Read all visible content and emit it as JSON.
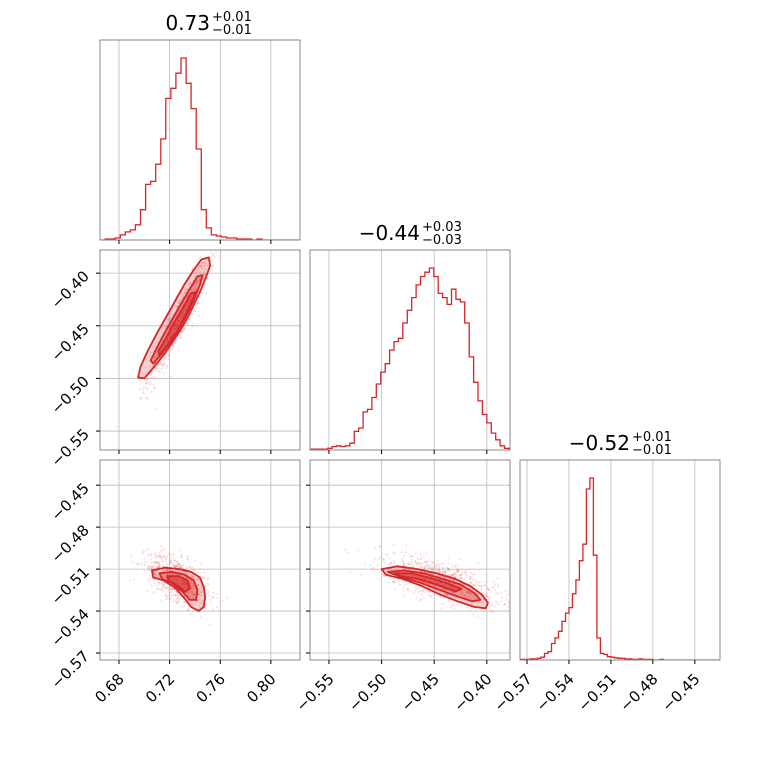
{
  "figure": {
    "type": "corner-plot",
    "color": "#d62728",
    "grid": true,
    "axis_color": "#888888",
    "grid_color": "#bbbbbb"
  },
  "params": [
    {
      "range": [
        0.665,
        0.823
      ],
      "ticks": [
        0.68,
        0.72,
        0.76,
        0.8
      ],
      "tick_labels": [
        "0.68",
        "0.72",
        "0.76",
        "0.80"
      ]
    },
    {
      "range": [
        -0.568,
        -0.378
      ],
      "ticks": [
        -0.55,
        -0.5,
        -0.45,
        -0.4
      ],
      "tick_labels": [
        "−0.55",
        "−0.50",
        "−0.45",
        "−0.40"
      ]
    },
    {
      "range": [
        -0.575,
        -0.432
      ],
      "ticks": [
        -0.57,
        -0.54,
        -0.51,
        -0.48,
        -0.45
      ],
      "tick_labels": [
        "−0.57",
        "−0.54",
        "−0.51",
        "−0.48",
        "−0.45"
      ]
    }
  ],
  "titles": [
    {
      "value": "0.73",
      "plus": "+0.01",
      "minus": "−0.01"
    },
    {
      "value": "−0.44",
      "plus": "+0.03",
      "minus": "−0.03"
    },
    {
      "value": "−0.52",
      "plus": "+0.01",
      "minus": "−0.01"
    }
  ],
  "chart_data": [
    {
      "type": "histogram",
      "param": 0,
      "bin_edges": [
        0.665,
        0.669,
        0.673,
        0.677,
        0.681,
        0.685,
        0.689,
        0.693,
        0.697,
        0.701,
        0.705,
        0.709,
        0.713,
        0.717,
        0.721,
        0.725,
        0.729,
        0.733,
        0.737,
        0.741,
        0.745,
        0.749,
        0.753,
        0.757,
        0.761,
        0.765,
        0.769,
        0.773,
        0.777,
        0.781,
        0.785,
        0.789,
        0.793,
        0.797,
        0.801,
        0.805,
        0.809,
        0.813,
        0.817,
        0.821,
        0.823
      ],
      "counts": [
        0,
        1,
        1,
        2,
        5,
        8,
        10,
        15,
        30,
        55,
        58,
        75,
        100,
        140,
        150,
        165,
        180,
        155,
        130,
        90,
        30,
        12,
        5,
        4,
        3,
        2,
        2,
        1,
        1,
        1,
        0,
        1,
        0,
        0,
        0,
        0,
        0,
        0,
        0,
        0
      ]
    },
    {
      "type": "histogram",
      "param": 1,
      "bin_edges": [
        -0.568,
        -0.5638,
        -0.5596,
        -0.5554,
        -0.5512,
        -0.547,
        -0.5428,
        -0.5386,
        -0.5344,
        -0.5302,
        -0.526,
        -0.5218,
        -0.5176,
        -0.5134,
        -0.5092,
        -0.505,
        -0.5008,
        -0.4966,
        -0.4924,
        -0.4882,
        -0.484,
        -0.4798,
        -0.4756,
        -0.4714,
        -0.4672,
        -0.463,
        -0.4588,
        -0.4546,
        -0.4504,
        -0.4462,
        -0.442,
        -0.4378,
        -0.4336,
        -0.4294,
        -0.4252,
        -0.421,
        -0.4168,
        -0.4126,
        -0.4084,
        -0.4042,
        -0.4,
        -0.3958,
        -0.3916,
        -0.3874,
        -0.3832,
        -0.379,
        -0.378
      ],
      "counts": [
        1,
        1,
        1,
        1,
        2,
        4,
        5,
        4,
        5,
        8,
        22,
        26,
        45,
        48,
        62,
        78,
        92,
        102,
        118,
        128,
        132,
        150,
        165,
        180,
        195,
        205,
        210,
        215,
        205,
        185,
        180,
        172,
        190,
        178,
        175,
        150,
        110,
        80,
        58,
        42,
        32,
        20,
        12,
        5,
        2,
        0
      ]
    },
    {
      "type": "histogram",
      "param": 2,
      "bin_edges": [
        -0.575,
        -0.5725,
        -0.57,
        -0.5675,
        -0.565,
        -0.5625,
        -0.56,
        -0.5575,
        -0.555,
        -0.5525,
        -0.55,
        -0.5475,
        -0.545,
        -0.5425,
        -0.54,
        -0.5375,
        -0.535,
        -0.5325,
        -0.53,
        -0.5275,
        -0.525,
        -0.5225,
        -0.52,
        -0.5175,
        -0.515,
        -0.5125,
        -0.51,
        -0.5075,
        -0.505,
        -0.5025,
        -0.5,
        -0.4975,
        -0.495,
        -0.4925,
        -0.49,
        -0.4875,
        -0.485,
        -0.4825,
        -0.48,
        -0.4775,
        -0.475,
        -0.4725,
        -0.47,
        -0.4675,
        -0.465,
        -0.4625,
        -0.46,
        -0.4575,
        -0.455,
        -0.4525,
        -0.45,
        -0.432
      ],
      "counts": [
        1,
        1,
        1,
        2,
        2,
        3,
        5,
        12,
        15,
        30,
        40,
        52,
        70,
        85,
        95,
        120,
        145,
        180,
        210,
        310,
        330,
        190,
        40,
        12,
        10,
        6,
        5,
        4,
        3,
        3,
        2,
        2,
        1,
        1,
        2,
        1,
        1,
        1,
        0,
        0,
        1,
        0,
        0,
        0,
        0,
        0,
        0,
        0,
        0,
        0,
        0
      ]
    },
    {
      "type": "scatter-density",
      "x_param": 0,
      "y_param": 1,
      "center": [
        0.727,
        -0.445
      ],
      "std": [
        0.012,
        0.028
      ],
      "correlation": 0.93,
      "contours": [
        [
          [
            0.7,
            -0.5
          ],
          [
            0.707,
            -0.49
          ],
          [
            0.715,
            -0.478
          ],
          [
            0.722,
            -0.466
          ],
          [
            0.728,
            -0.455
          ],
          [
            0.734,
            -0.443
          ],
          [
            0.74,
            -0.428
          ],
          [
            0.745,
            -0.415
          ],
          [
            0.749,
            -0.403
          ],
          [
            0.752,
            -0.393
          ],
          [
            0.751,
            -0.385
          ],
          [
            0.745,
            -0.387
          ],
          [
            0.739,
            -0.397
          ],
          [
            0.732,
            -0.41
          ],
          [
            0.725,
            -0.425
          ],
          [
            0.718,
            -0.44
          ],
          [
            0.71,
            -0.457
          ],
          [
            0.703,
            -0.473
          ],
          [
            0.697,
            -0.489
          ],
          [
            0.695,
            -0.499
          ]
        ],
        [
          [
            0.707,
            -0.486
          ],
          [
            0.714,
            -0.476
          ],
          [
            0.721,
            -0.465
          ],
          [
            0.727,
            -0.454
          ],
          [
            0.733,
            -0.441
          ],
          [
            0.739,
            -0.426
          ],
          [
            0.744,
            -0.411
          ],
          [
            0.746,
            -0.402
          ],
          [
            0.742,
            -0.403
          ],
          [
            0.736,
            -0.415
          ],
          [
            0.729,
            -0.429
          ],
          [
            0.722,
            -0.444
          ],
          [
            0.715,
            -0.459
          ],
          [
            0.709,
            -0.473
          ],
          [
            0.705,
            -0.483
          ]
        ],
        [
          [
            0.712,
            -0.478
          ],
          [
            0.719,
            -0.467
          ],
          [
            0.726,
            -0.455
          ],
          [
            0.732,
            -0.441
          ],
          [
            0.738,
            -0.426
          ],
          [
            0.741,
            -0.418
          ],
          [
            0.737,
            -0.419
          ],
          [
            0.731,
            -0.432
          ],
          [
            0.724,
            -0.446
          ],
          [
            0.717,
            -0.462
          ],
          [
            0.711,
            -0.474
          ]
        ]
      ]
    },
    {
      "type": "scatter-density",
      "x_param": 0,
      "y_param": 2,
      "center": [
        0.727,
        -0.518
      ],
      "std": [
        0.012,
        0.009
      ],
      "correlation": -0.55,
      "contours": [
        [
          [
            0.706,
            -0.511
          ],
          [
            0.716,
            -0.509
          ],
          [
            0.728,
            -0.51
          ],
          [
            0.737,
            -0.512
          ],
          [
            0.744,
            -0.516
          ],
          [
            0.747,
            -0.523
          ],
          [
            0.748,
            -0.53
          ],
          [
            0.747,
            -0.537
          ],
          [
            0.743,
            -0.54
          ],
          [
            0.737,
            -0.537
          ],
          [
            0.731,
            -0.53
          ],
          [
            0.724,
            -0.523
          ],
          [
            0.715,
            -0.518
          ],
          [
            0.707,
            -0.516
          ]
        ],
        [
          [
            0.712,
            -0.513
          ],
          [
            0.722,
            -0.512
          ],
          [
            0.732,
            -0.514
          ],
          [
            0.739,
            -0.518
          ],
          [
            0.742,
            -0.525
          ],
          [
            0.741,
            -0.532
          ],
          [
            0.736,
            -0.532
          ],
          [
            0.73,
            -0.526
          ],
          [
            0.722,
            -0.52
          ],
          [
            0.714,
            -0.517
          ]
        ],
        [
          [
            0.718,
            -0.515
          ],
          [
            0.727,
            -0.515
          ],
          [
            0.734,
            -0.518
          ],
          [
            0.736,
            -0.524
          ],
          [
            0.732,
            -0.526
          ],
          [
            0.725,
            -0.521
          ],
          [
            0.719,
            -0.518
          ]
        ]
      ]
    },
    {
      "type": "scatter-density",
      "x_param": 1,
      "y_param": 2,
      "center": [
        -0.445,
        -0.518
      ],
      "std": [
        0.028,
        0.009
      ],
      "correlation": -0.65,
      "contours": [
        [
          [
            -0.5,
            -0.51
          ],
          [
            -0.485,
            -0.508
          ],
          [
            -0.466,
            -0.51
          ],
          [
            -0.448,
            -0.513
          ],
          [
            -0.43,
            -0.517
          ],
          [
            -0.416,
            -0.522
          ],
          [
            -0.405,
            -0.528
          ],
          [
            -0.399,
            -0.534
          ],
          [
            -0.401,
            -0.538
          ],
          [
            -0.412,
            -0.537
          ],
          [
            -0.428,
            -0.533
          ],
          [
            -0.445,
            -0.528
          ],
          [
            -0.462,
            -0.522
          ],
          [
            -0.48,
            -0.517
          ],
          [
            -0.496,
            -0.514
          ]
        ],
        [
          [
            -0.494,
            -0.512
          ],
          [
            -0.478,
            -0.511
          ],
          [
            -0.46,
            -0.513
          ],
          [
            -0.442,
            -0.517
          ],
          [
            -0.425,
            -0.521
          ],
          [
            -0.412,
            -0.527
          ],
          [
            -0.406,
            -0.532
          ],
          [
            -0.414,
            -0.533
          ],
          [
            -0.43,
            -0.529
          ],
          [
            -0.448,
            -0.524
          ],
          [
            -0.466,
            -0.519
          ],
          [
            -0.484,
            -0.515
          ]
        ],
        [
          [
            -0.488,
            -0.513
          ],
          [
            -0.472,
            -0.513
          ],
          [
            -0.455,
            -0.516
          ],
          [
            -0.438,
            -0.52
          ],
          [
            -0.424,
            -0.524
          ],
          [
            -0.43,
            -0.526
          ],
          [
            -0.448,
            -0.521
          ],
          [
            -0.466,
            -0.517
          ],
          [
            -0.482,
            -0.515
          ]
        ]
      ]
    }
  ]
}
